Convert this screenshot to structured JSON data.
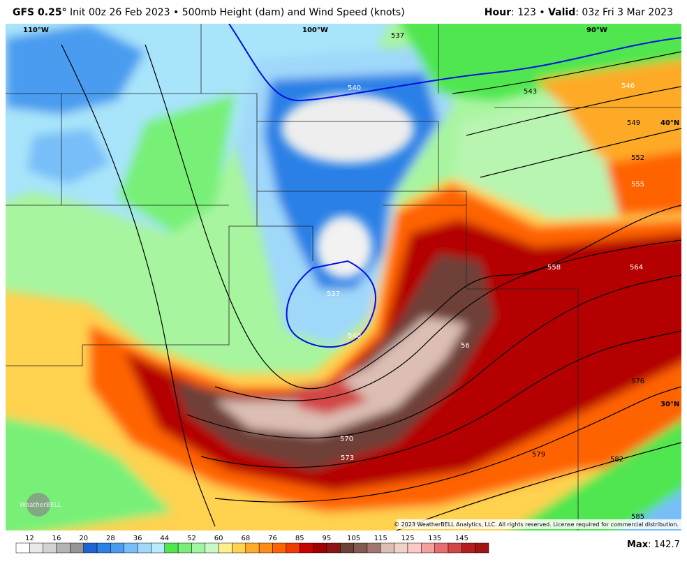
{
  "header": {
    "model": "GFS 0.25°",
    "init": "Init 00z 26 Feb 2023",
    "separator": "•",
    "product": "500mb Height (dam) and Wind Speed (knots)",
    "hour_label": "Hour",
    "hour": "123",
    "valid_label": "Valid",
    "valid": "03z Fri 3 Mar 2023"
  },
  "map": {
    "lon_labels": [
      "110°W",
      "100°W",
      "90°W"
    ],
    "lat_labels": [
      "40°N",
      "30°N"
    ],
    "contour_labels": [
      537,
      540,
      543,
      546,
      549,
      552,
      555,
      558,
      564,
      576,
      579,
      582,
      585,
      537,
      540,
      56,
      570,
      573
    ],
    "watermark": "WeatherBELL",
    "copyright": "© 2023 WeatherBELL Analytics, LLC. All rights reserved. License required for commercial distribution."
  },
  "legend": {
    "ticks": [
      12,
      16,
      20,
      28,
      36,
      44,
      52,
      60,
      68,
      76,
      85,
      95,
      105,
      115,
      125,
      135,
      145
    ],
    "colors": [
      "#ffffff",
      "#e8e8e8",
      "#d2d2d2",
      "#b4b4b4",
      "#969696",
      "#1e64d2",
      "#2c80e6",
      "#4a9cf0",
      "#78bef8",
      "#a0d8fa",
      "#b8ecfc",
      "#50e650",
      "#78f078",
      "#a0f5a0",
      "#c8fac8",
      "#fff08c",
      "#ffd250",
      "#ffaa28",
      "#ff8c14",
      "#ff6400",
      "#f03c00",
      "#c80000",
      "#a00000",
      "#8c1414",
      "#6e4137",
      "#825a50",
      "#a07870",
      "#dcbeb4",
      "#f0d2c8",
      "#ffc8c8",
      "#f5a0a0",
      "#e66e6e",
      "#d24646",
      "#b41e1e",
      "#a01414"
    ]
  },
  "max": {
    "label": "Max",
    "value": "142.7"
  }
}
